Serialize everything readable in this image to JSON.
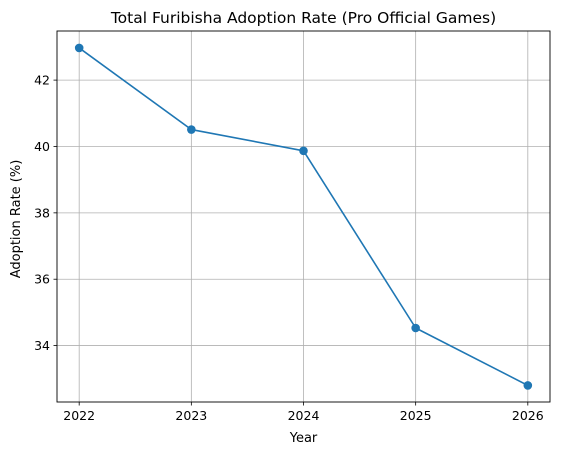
{
  "chart_data": {
    "type": "line",
    "title": "Total Furibisha Adoption Rate (Pro Official Games)",
    "xlabel": "Year",
    "ylabel": "Adoption Rate (%)",
    "x": [
      "2022",
      "2023",
      "2024",
      "2025",
      "2026"
    ],
    "series": [
      {
        "values": [
          42.97,
          40.51,
          39.87,
          34.53,
          32.8
        ],
        "color": "#1f77b4",
        "marker": "circle"
      }
    ],
    "ylim": [
      32.3,
      43.48
    ],
    "yticks": [
      34,
      36,
      38,
      40,
      42
    ],
    "ytick_labels": [
      "34",
      "36",
      "38",
      "40",
      "42"
    ],
    "grid": true,
    "legend": "none"
  }
}
